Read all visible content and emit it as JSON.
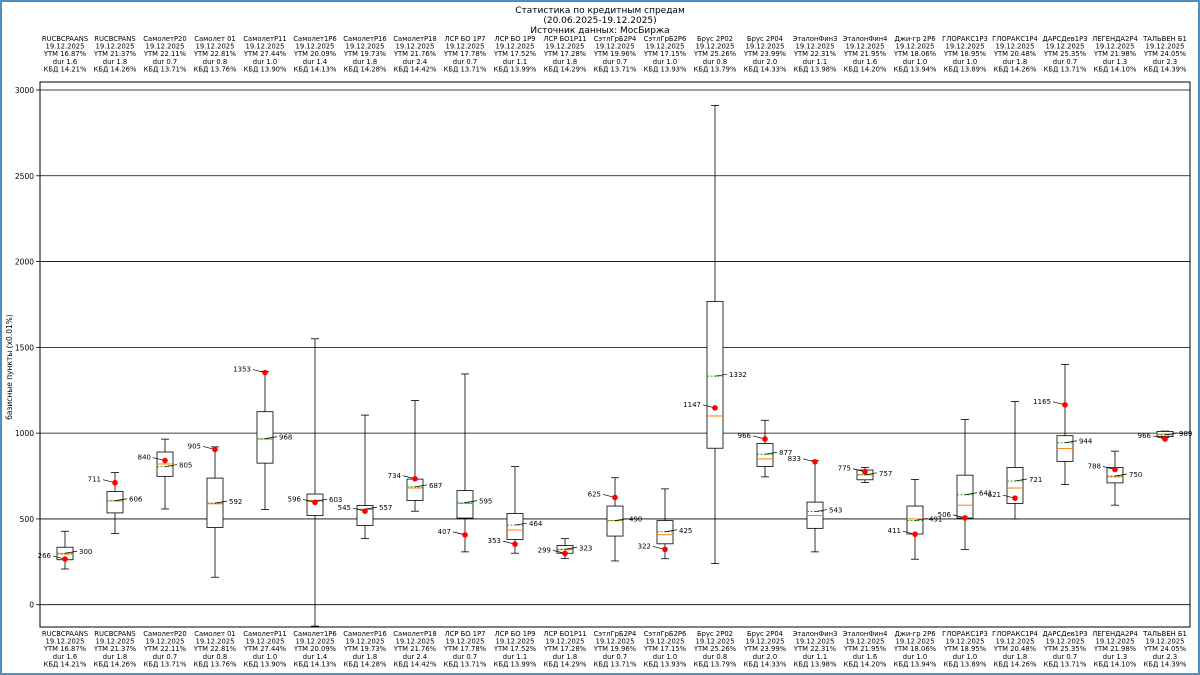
{
  "chart_data": {
    "type": "boxplot",
    "title": "Статистика по кредитным спредам",
    "subtitle": "(20.06.2025-19.12.2025)",
    "source": "Источник данных: МосБиржа",
    "ylabel": "базисные пункты (x0.01%)",
    "ylim": [
      -130,
      3000
    ],
    "yticks": [
      0,
      500,
      1000,
      1500,
      2000,
      2500,
      3000
    ],
    "grid": "y",
    "bonds": [
      {
        "name": "RUCBCPAANS",
        "date": "19.12.2025",
        "ytm": "YTM 16.87%",
        "dur": "dur 1.6",
        "kbd": "КБД 14.21%",
        "q1": 262,
        "q3": 335,
        "wlo": 208,
        "whi": 428,
        "median": 295,
        "mean": 300,
        "current": 266,
        "mean_label": "300",
        "current_label": "266"
      },
      {
        "name": "RUCBCPANS",
        "date": "19.12.2025",
        "ytm": "YTM 21.37%",
        "dur": "dur 1.8",
        "kbd": "КБД 14.26%",
        "q1": 535,
        "q3": 660,
        "wlo": 415,
        "whi": 770,
        "median": 605,
        "mean": 606,
        "current": 711,
        "mean_label": "606",
        "current_label": "711"
      },
      {
        "name": "СамолетP20",
        "date": "19.12.2025",
        "ytm": "YTM 22.11%",
        "dur": "dur 0.7",
        "kbd": "КБД 13.71%",
        "q1": 748,
        "q3": 890,
        "wlo": 558,
        "whi": 965,
        "median": 820,
        "mean": 805,
        "current": 840,
        "mean_label": "805",
        "current_label": "840"
      },
      {
        "name": "Самолет 01",
        "date": "19.12.2025",
        "ytm": "YTM 22.81%",
        "dur": "dur 0.8",
        "kbd": "КБД 13.76%",
        "q1": 450,
        "q3": 738,
        "wlo": 160,
        "whi": 920,
        "median": 588,
        "mean": 592,
        "current": 905,
        "mean_label": "592",
        "current_label": "905"
      },
      {
        "name": "СамолетP11",
        "date": "19.12.2025",
        "ytm": "YTM 27.44%",
        "dur": "dur 1.0",
        "kbd": "КБД 13.90%",
        "q1": 825,
        "q3": 1125,
        "wlo": 555,
        "whi": 1360,
        "median": 965,
        "mean": 968,
        "current": 1353,
        "mean_label": "968",
        "current_label": "1353"
      },
      {
        "name": "Самолет1P6",
        "date": "19.12.2025",
        "ytm": "YTM 20.09%",
        "dur": "dur 1.4",
        "kbd": "КБД 14.13%",
        "q1": 520,
        "q3": 645,
        "wlo": -125,
        "whi": 1550,
        "median": 608,
        "mean": 603,
        "current": 596,
        "mean_label": "603",
        "current_label": "596"
      },
      {
        "name": "СамолетP16",
        "date": "19.12.2025",
        "ytm": "YTM 19.73%",
        "dur": "dur 1.8",
        "kbd": "КБД 14.28%",
        "q1": 462,
        "q3": 578,
        "wlo": 385,
        "whi": 1105,
        "median": 555,
        "mean": 557,
        "current": 545,
        "mean_label": "557",
        "current_label": "545"
      },
      {
        "name": "СамолетP18",
        "date": "19.12.2025",
        "ytm": "YTM 21.76%",
        "dur": "dur 2.4",
        "kbd": "КБД 14.42%",
        "q1": 608,
        "q3": 732,
        "wlo": 545,
        "whi": 1190,
        "median": 680,
        "mean": 687,
        "current": 734,
        "mean_label": "687",
        "current_label": "734"
      },
      {
        "name": "ЛСР БО 1P7",
        "date": "19.12.2025",
        "ytm": "YTM 17.78%",
        "dur": "dur 0.7",
        "kbd": "КБД 13.71%",
        "q1": 505,
        "q3": 665,
        "wlo": 308,
        "whi": 1345,
        "median": 590,
        "mean": 595,
        "current": 407,
        "mean_label": "595",
        "current_label": "407"
      },
      {
        "name": "ЛСР БО 1P9",
        "date": "19.12.2025",
        "ytm": "YTM 17.52%",
        "dur": "dur 1.1",
        "kbd": "КБД 13.99%",
        "q1": 380,
        "q3": 532,
        "wlo": 300,
        "whi": 805,
        "median": 435,
        "mean": 464,
        "current": 353,
        "mean_label": "464",
        "current_label": "353"
      },
      {
        "name": "ЛСР БО1P11",
        "date": "19.12.2025",
        "ytm": "YTM 17.28%",
        "dur": "dur 1.8",
        "kbd": "КБД 14.29%",
        "q1": 300,
        "q3": 345,
        "wlo": 270,
        "whi": 385,
        "median": 320,
        "mean": 323,
        "current": 299,
        "mean_label": "323",
        "current_label": "299"
      },
      {
        "name": "СэтлГрБ2P4",
        "date": "19.12.2025",
        "ytm": "YTM 19.96%",
        "dur": "dur 0.7",
        "kbd": "КБД 13.71%",
        "q1": 400,
        "q3": 575,
        "wlo": 255,
        "whi": 740,
        "median": 490,
        "mean": 490,
        "current": 625,
        "mean_label": "490",
        "current_label": "625"
      },
      {
        "name": "СэтлГрБ2P6",
        "date": "19.12.2025",
        "ytm": "YTM 17.15%",
        "dur": "dur 1.0",
        "kbd": "КБД 13.93%",
        "q1": 355,
        "q3": 490,
        "wlo": 268,
        "whi": 675,
        "median": 408,
        "mean": 425,
        "current": 322,
        "mean_label": "425",
        "current_label": "322"
      },
      {
        "name": "Брус 2P02",
        "date": "19.12.2025",
        "ytm": "YTM 25.26%",
        "dur": "dur 0.8",
        "kbd": "КБД 13.79%",
        "q1": 912,
        "q3": 1768,
        "wlo": 240,
        "whi": 2910,
        "median": 1100,
        "mean": 1332,
        "current": 1147,
        "mean_label": "1332",
        "current_label": "1147"
      },
      {
        "name": "Брус 2P04",
        "date": "19.12.2025",
        "ytm": "YTM 23.99%",
        "dur": "dur 2.0",
        "kbd": "КБД 14.33%",
        "q1": 805,
        "q3": 940,
        "wlo": 745,
        "whi": 1075,
        "median": 850,
        "mean": 877,
        "current": 966,
        "mean_label": "877",
        "current_label": "966"
      },
      {
        "name": "ЭталонФин3",
        "date": "19.12.2025",
        "ytm": "YTM 22.31%",
        "dur": "dur 1.1",
        "kbd": "КБД 13.98%",
        "q1": 445,
        "q3": 598,
        "wlo": 308,
        "whi": 840,
        "median": 520,
        "mean": 543,
        "current": 833,
        "mean_label": "543",
        "current_label": "833"
      },
      {
        "name": "ЭталонФин4",
        "date": "19.12.2025",
        "ytm": "YTM 21.95%",
        "dur": "dur 1.6",
        "kbd": "КБД 14.20%",
        "q1": 728,
        "q3": 785,
        "wlo": 712,
        "whi": 800,
        "median": 758,
        "mean": 757,
        "current": 775,
        "mean_label": "757",
        "current_label": "775"
      },
      {
        "name": "Джи-гр 2P6",
        "date": "19.12.2025",
        "ytm": "YTM 18.06%",
        "dur": "dur 1.0",
        "kbd": "КБД 13.94%",
        "q1": 412,
        "q3": 575,
        "wlo": 265,
        "whi": 730,
        "median": 500,
        "mean": 491,
        "current": 411,
        "mean_label": "491",
        "current_label": "411"
      },
      {
        "name": "ГЛОРАКС1P3",
        "date": "19.12.2025",
        "ytm": "YTM 18.95%",
        "dur": "dur 1.0",
        "kbd": "КБД 13.89%",
        "q1": 505,
        "q3": 755,
        "wlo": 322,
        "whi": 1080,
        "median": 580,
        "mean": 641,
        "current": 506,
        "mean_label": "641",
        "current_label": "506"
      },
      {
        "name": "ГЛОРАКС1P4",
        "date": "19.12.2025",
        "ytm": "YTM 20.48%",
        "dur": "dur 1.8",
        "kbd": "КБД 14.26%",
        "q1": 590,
        "q3": 800,
        "wlo": 500,
        "whi": 1185,
        "median": 680,
        "mean": 721,
        "current": 621,
        "mean_label": "721",
        "current_label": "621"
      },
      {
        "name": "ДАРСДев1P3",
        "date": "19.12.2025",
        "ytm": "YTM 25.35%",
        "dur": "dur 0.7",
        "kbd": "КБД 13.71%",
        "q1": 835,
        "q3": 985,
        "wlo": 700,
        "whi": 1400,
        "median": 910,
        "mean": 944,
        "current": 1165,
        "mean_label": "944",
        "current_label": "1165"
      },
      {
        "name": "ЛЕГЕНДА2P4",
        "date": "19.12.2025",
        "ytm": "YTM 21.98%",
        "dur": "dur 1.3",
        "kbd": "КБД 14.10%",
        "q1": 710,
        "q3": 800,
        "wlo": 580,
        "whi": 895,
        "median": 745,
        "mean": 750,
        "current": 788,
        "mean_label": "750",
        "current_label": "788"
      },
      {
        "name": "ТАЛЬВЕН Б1",
        "date": "19.12.2025",
        "ytm": "YTM 24.05%",
        "dur": "dur 2.3",
        "kbd": "КБД 14.39%",
        "q1": 980,
        "q3": 1010,
        "wlo": 975,
        "whi": 1012,
        "median": 995,
        "mean": 989,
        "current": 966,
        "mean_label": "989",
        "current_label": "966"
      }
    ]
  },
  "colors": {
    "box": "#000000",
    "median": "#ff7f0e",
    "mean": "#2ca02c",
    "current": "#ff0000",
    "grid": "#000000",
    "frame": "#4a90c4"
  }
}
